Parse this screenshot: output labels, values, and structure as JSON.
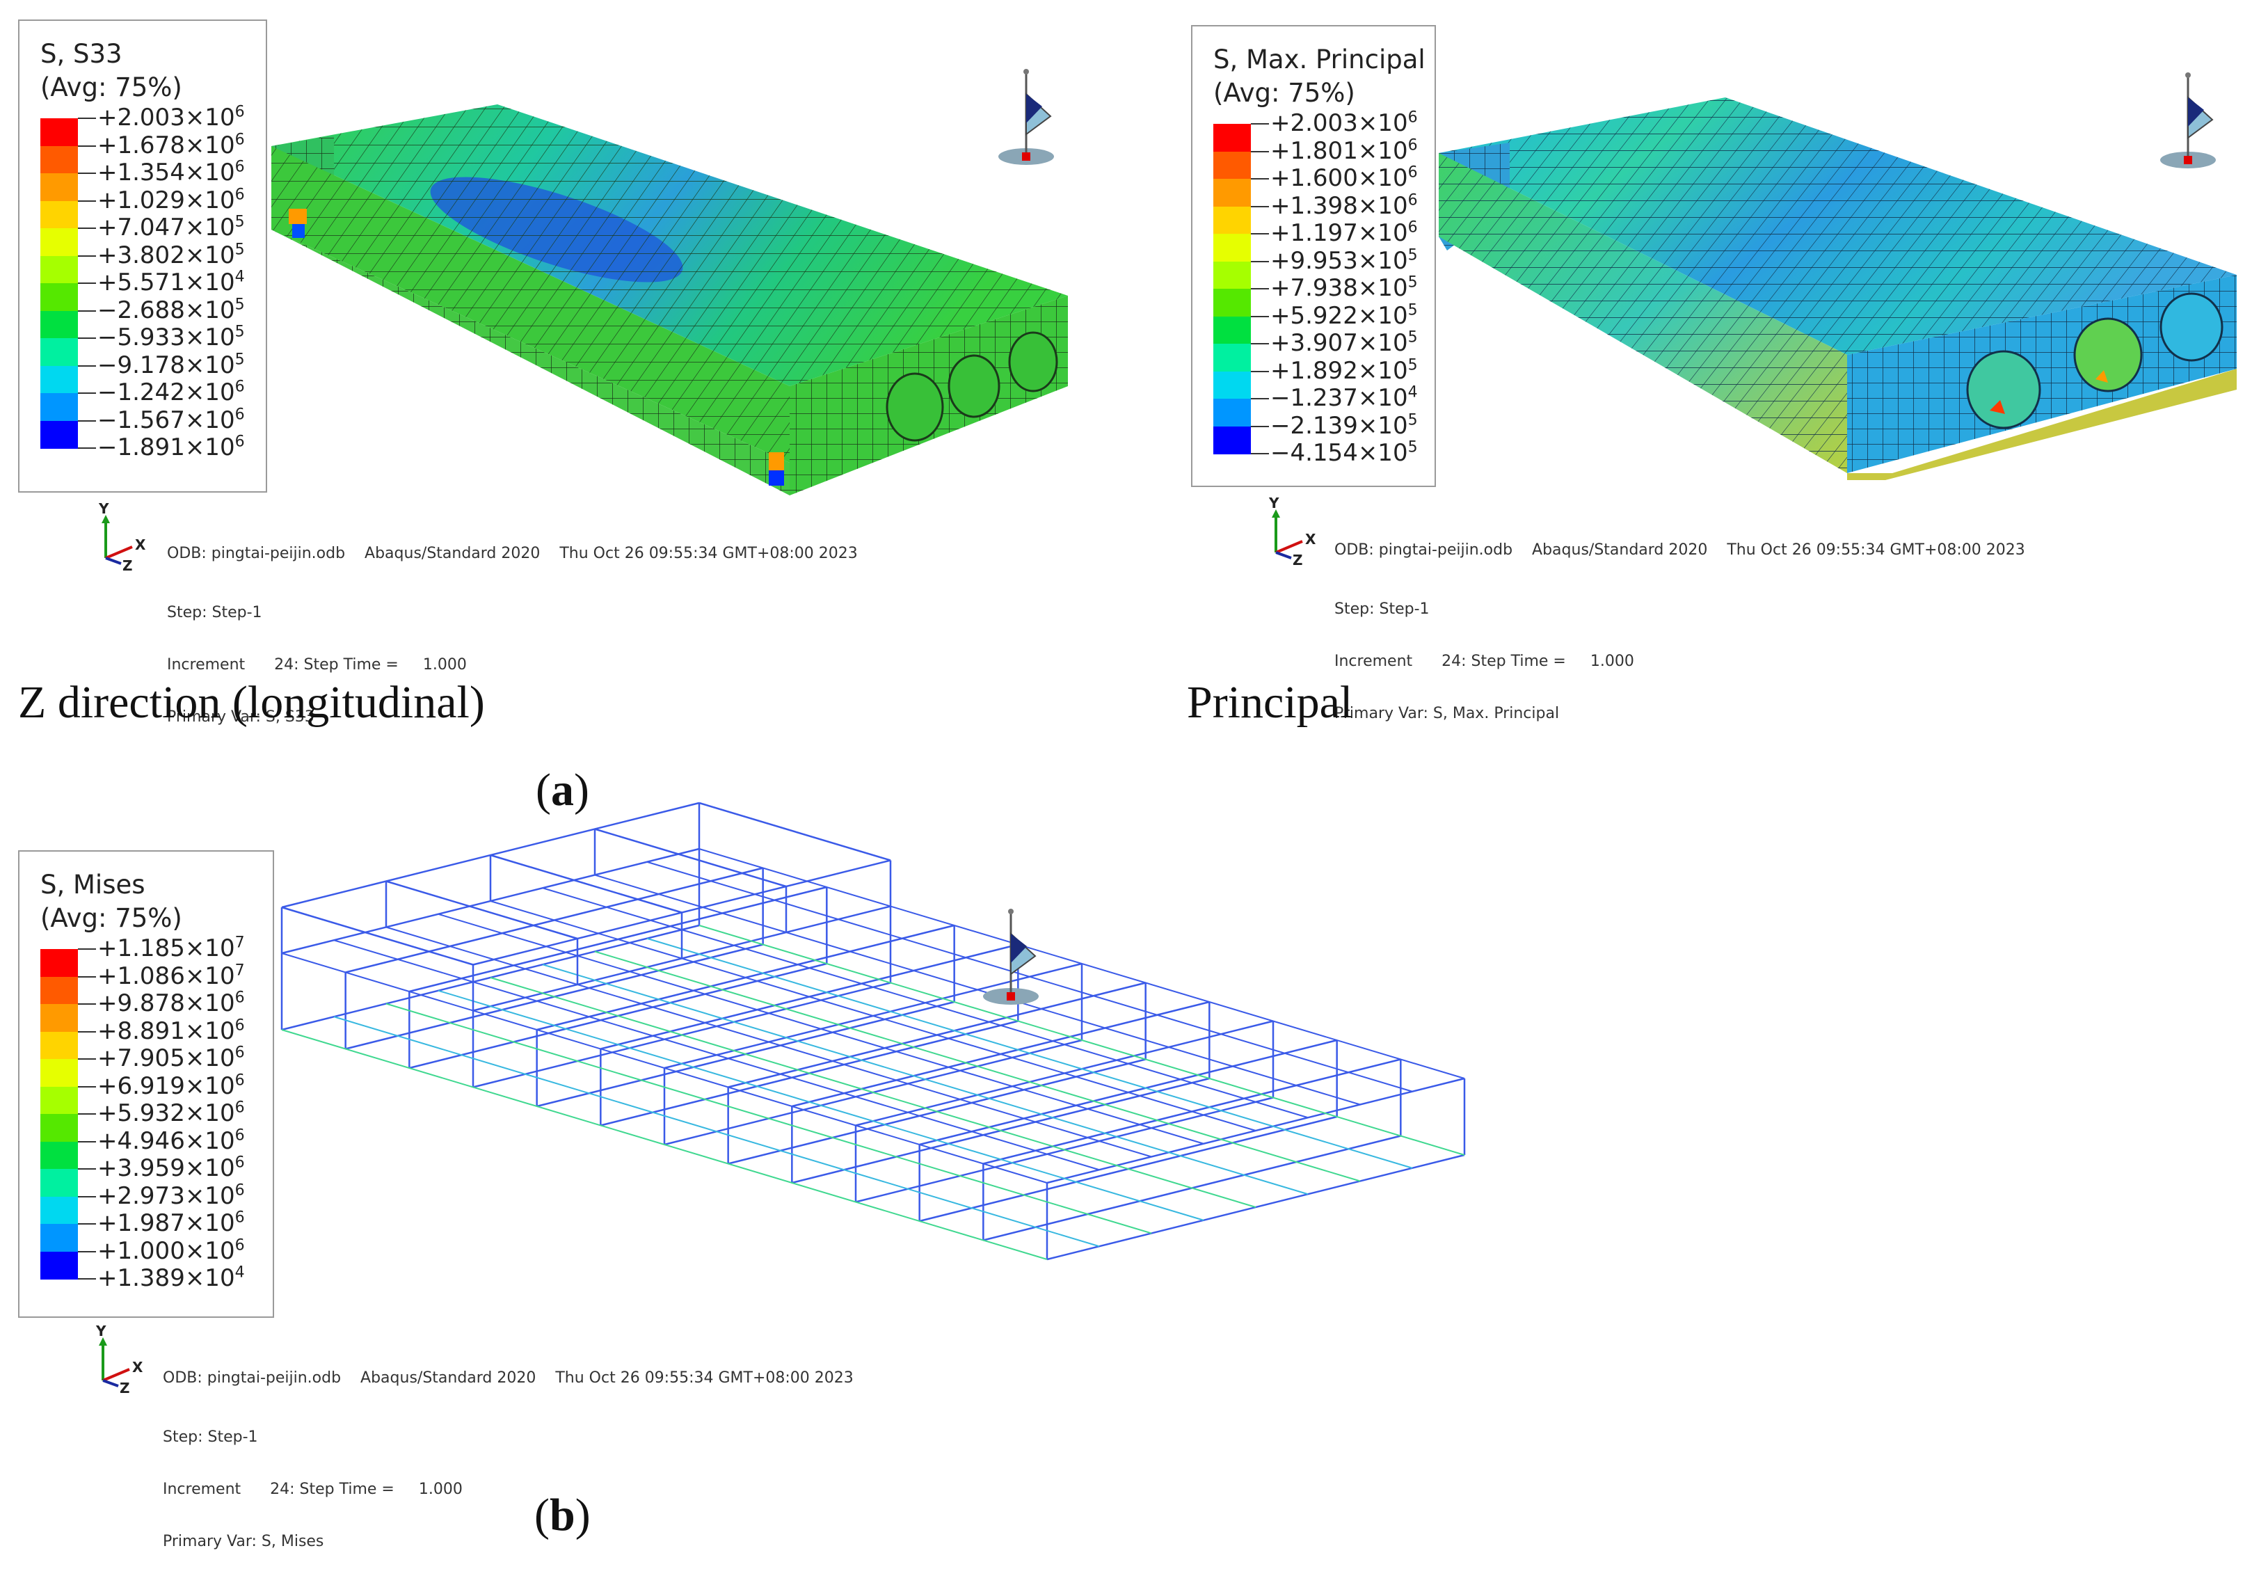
{
  "panels": [
    {
      "id": "s33",
      "legend_title_line1": "S, S33",
      "legend_title_line2": "(Avg: 75%)",
      "legend_entries": [
        {
          "m": "+2.003×10",
          "e": "6"
        },
        {
          "m": "+1.678×10",
          "e": "6"
        },
        {
          "m": "+1.354×10",
          "e": "6"
        },
        {
          "m": "+1.029×10",
          "e": "6"
        },
        {
          "m": "+7.047×10",
          "e": "5"
        },
        {
          "m": "+3.802×10",
          "e": "5"
        },
        {
          "m": "+5.571×10",
          "e": "4"
        },
        {
          "m": "−2.688×10",
          "e": "5"
        },
        {
          "m": "−5.933×10",
          "e": "5"
        },
        {
          "m": "−9.178×10",
          "e": "5"
        },
        {
          "m": "−1.242×10",
          "e": "6"
        },
        {
          "m": "−1.567×10",
          "e": "6"
        },
        {
          "m": "−1.891×10",
          "e": "6"
        }
      ],
      "info_line1": "ODB: pingtai-peijin.odb    Abaqus/Standard 2020    Thu Oct 26 09:55:34 GMT+08:00 2023",
      "info_line2": "Step: Step-1",
      "info_line3": "Increment      24: Step Time =     1.000",
      "info_line4": "Primary Var: S, S33"
    },
    {
      "id": "maxp",
      "legend_title_line1": "S, Max. Principal",
      "legend_title_line2": "(Avg: 75%)",
      "legend_entries": [
        {
          "m": "+2.003×10",
          "e": "6"
        },
        {
          "m": "+1.801×10",
          "e": "6"
        },
        {
          "m": "+1.600×10",
          "e": "6"
        },
        {
          "m": "+1.398×10",
          "e": "6"
        },
        {
          "m": "+1.197×10",
          "e": "6"
        },
        {
          "m": "+9.953×10",
          "e": "5"
        },
        {
          "m": "+7.938×10",
          "e": "5"
        },
        {
          "m": "+5.922×10",
          "e": "5"
        },
        {
          "m": "+3.907×10",
          "e": "5"
        },
        {
          "m": "+1.892×10",
          "e": "5"
        },
        {
          "m": "−1.237×10",
          "e": "4"
        },
        {
          "m": "−2.139×10",
          "e": "5"
        },
        {
          "m": "−4.154×10",
          "e": "5"
        }
      ],
      "info_line1": "ODB: pingtai-peijin.odb    Abaqus/Standard 2020    Thu Oct 26 09:55:34 GMT+08:00 2023",
      "info_line2": "Step: Step-1",
      "info_line3": "Increment      24: Step Time =     1.000",
      "info_line4": "Primary Var: S, Max. Principal"
    },
    {
      "id": "mises",
      "legend_title_line1": "S, Mises",
      "legend_title_line2": "(Avg: 75%)",
      "legend_entries": [
        {
          "m": "+1.185×10",
          "e": "7"
        },
        {
          "m": "+1.086×10",
          "e": "7"
        },
        {
          "m": "+9.878×10",
          "e": "6"
        },
        {
          "m": "+8.891×10",
          "e": "6"
        },
        {
          "m": "+7.905×10",
          "e": "6"
        },
        {
          "m": "+6.919×10",
          "e": "6"
        },
        {
          "m": "+5.932×10",
          "e": "6"
        },
        {
          "m": "+4.946×10",
          "e": "6"
        },
        {
          "m": "+3.959×10",
          "e": "6"
        },
        {
          "m": "+2.973×10",
          "e": "6"
        },
        {
          "m": "+1.987×10",
          "e": "6"
        },
        {
          "m": "+1.000×10",
          "e": "6"
        },
        {
          "m": "+1.389×10",
          "e": "4"
        }
      ],
      "info_line1": "ODB: pingtai-peijin.odb    Abaqus/Standard 2020    Thu Oct 26 09:55:34 GMT+08:00 2023",
      "info_line2": "Step: Step-1",
      "info_line3": "Increment      24: Step Time =     1.000",
      "info_line4": "Primary Var: S, Mises"
    }
  ],
  "colorbar": [
    "#ff0000",
    "#ff5a00",
    "#ff9a00",
    "#ffd400",
    "#e6ff00",
    "#a6ff00",
    "#55e800",
    "#00e040",
    "#00f0a0",
    "#00d8f0",
    "#0096ff",
    "#004cff",
    "#0000ff"
  ],
  "triad_labels": {
    "y": "Y",
    "x": "X",
    "z": "Z"
  },
  "captions": {
    "s33": "Z direction (longitudinal)",
    "principal": "Principal",
    "a": "a",
    "b": "b"
  },
  "icons": [
    "axis-triad-icon",
    "view-orientation-icon"
  ]
}
